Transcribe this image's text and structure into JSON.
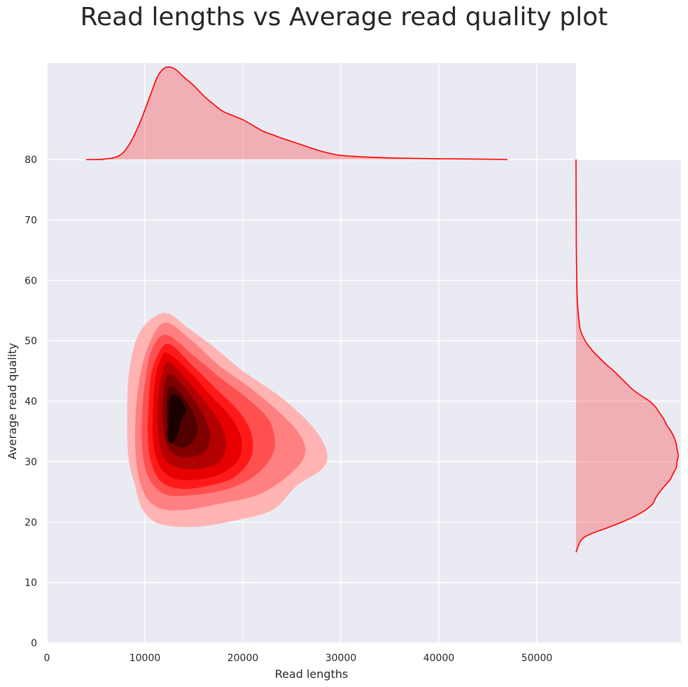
{
  "chart_data": {
    "type": "kde-jointplot",
    "title": "Read lengths vs Average read quality plot",
    "xlabel": "Read lengths",
    "ylabel": "Average read quality",
    "xlim": [
      0,
      54000
    ],
    "ylim": [
      0,
      80
    ],
    "x_ticks": [
      0,
      10000,
      20000,
      30000,
      40000,
      50000
    ],
    "y_ticks": [
      0,
      10,
      20,
      30,
      40,
      50,
      60,
      70,
      80
    ],
    "grid": true,
    "color": "#ff0000",
    "contour_fills": [
      "#ffb3b3",
      "#ff8080",
      "#ff5050",
      "#ff1a1a",
      "#e60000",
      "#b30000",
      "#800000",
      "#500000",
      "#1a0000"
    ],
    "contour_levels": [
      [
        [
          12000,
          54.6
        ],
        [
          14500,
          52
        ],
        [
          17000,
          49
        ],
        [
          20000,
          45
        ],
        [
          24000,
          40.5
        ],
        [
          27000,
          36
        ],
        [
          28500,
          32
        ],
        [
          28200,
          29
        ],
        [
          25500,
          26
        ],
        [
          23000,
          22
        ],
        [
          19000,
          20.2
        ],
        [
          15000,
          19.2
        ],
        [
          11500,
          19.7
        ],
        [
          9800,
          22
        ],
        [
          9000,
          26
        ],
        [
          8300,
          31
        ],
        [
          8200,
          38
        ],
        [
          8400,
          45
        ],
        [
          9500,
          51.5
        ]
      ],
      [
        [
          12000,
          53
        ],
        [
          14800,
          50
        ],
        [
          17500,
          46
        ],
        [
          20500,
          42.5
        ],
        [
          23500,
          38.5
        ],
        [
          25800,
          34.5
        ],
        [
          26300,
          31
        ],
        [
          24500,
          27.5
        ],
        [
          21500,
          24.5
        ],
        [
          17500,
          23
        ],
        [
          14000,
          22
        ],
        [
          11500,
          22.3
        ],
        [
          10000,
          24.5
        ],
        [
          9200,
          29
        ],
        [
          9000,
          35
        ],
        [
          9300,
          42
        ],
        [
          10200,
          48.5
        ]
      ],
      [
        [
          12200,
          51
        ],
        [
          15000,
          47.5
        ],
        [
          18000,
          43.5
        ],
        [
          20800,
          40
        ],
        [
          22800,
          36.5
        ],
        [
          23200,
          32
        ],
        [
          21500,
          28
        ],
        [
          18500,
          25.5
        ],
        [
          15000,
          24.5
        ],
        [
          12200,
          24.5
        ],
        [
          10500,
          27
        ],
        [
          9800,
          31
        ],
        [
          9700,
          37
        ],
        [
          10000,
          43
        ],
        [
          10700,
          48.5
        ]
      ],
      [
        [
          12300,
          49.5
        ],
        [
          14800,
          46
        ],
        [
          17300,
          42
        ],
        [
          19500,
          38.5
        ],
        [
          20800,
          35
        ],
        [
          20900,
          31
        ],
        [
          19200,
          27.5
        ],
        [
          16500,
          26
        ],
        [
          13800,
          25.5
        ],
        [
          11800,
          26.5
        ],
        [
          10700,
          29.5
        ],
        [
          10300,
          34
        ],
        [
          10400,
          40
        ],
        [
          10800,
          45.5
        ]
      ],
      [
        [
          12300,
          48
        ],
        [
          14500,
          45
        ],
        [
          16700,
          41
        ],
        [
          18700,
          37.5
        ],
        [
          19800,
          34
        ],
        [
          19600,
          30.5
        ],
        [
          17800,
          28
        ],
        [
          15200,
          27
        ],
        [
          13000,
          27.2
        ],
        [
          11600,
          29
        ],
        [
          10900,
          32.5
        ],
        [
          10800,
          37.5
        ],
        [
          11000,
          43
        ],
        [
          11500,
          46.5
        ]
      ],
      [
        [
          12400,
          46.5
        ],
        [
          14300,
          43.5
        ],
        [
          16100,
          40
        ],
        [
          17600,
          36.5
        ],
        [
          18300,
          33
        ],
        [
          17600,
          30
        ],
        [
          15600,
          28.8
        ],
        [
          13400,
          29
        ],
        [
          12000,
          30.5
        ],
        [
          11400,
          34
        ],
        [
          11300,
          39
        ],
        [
          11600,
          43.5
        ]
      ],
      [
        [
          12500,
          44.5
        ],
        [
          14200,
          42
        ],
        [
          15700,
          38.5
        ],
        [
          16600,
          35
        ],
        [
          16300,
          32
        ],
        [
          14900,
          30.8
        ],
        [
          13200,
          31
        ],
        [
          12200,
          33
        ],
        [
          11800,
          37
        ],
        [
          11900,
          41.5
        ]
      ],
      [
        [
          12600,
          42.5
        ],
        [
          14000,
          40.5
        ],
        [
          15100,
          37.5
        ],
        [
          15300,
          34.5
        ],
        [
          14300,
          32.5
        ],
        [
          13000,
          32.8
        ],
        [
          12400,
          35
        ],
        [
          12200,
          39
        ]
      ],
      [
        [
          12600,
          40.8
        ],
        [
          13600,
          40.5
        ],
        [
          14200,
          38.5
        ],
        [
          13800,
          37.2
        ],
        [
          13500,
          35.5
        ],
        [
          13200,
          34
        ],
        [
          12700,
          33
        ],
        [
          12300,
          34
        ],
        [
          12400,
          37
        ]
      ]
    ],
    "marginal_x": {
      "x": [
        4000,
        6000,
        7500,
        8500,
        9500,
        10500,
        11300,
        12000,
        12600,
        13200,
        14000,
        15000,
        16000,
        17000,
        18000,
        20000,
        22000,
        23000,
        24000,
        26000,
        28000,
        30000,
        33000,
        36000,
        40000,
        45000,
        47000
      ],
      "density": [
        0,
        0.005,
        0.05,
        0.18,
        0.4,
        0.68,
        0.9,
        0.99,
        1.0,
        0.97,
        0.89,
        0.8,
        0.69,
        0.6,
        0.52,
        0.43,
        0.31,
        0.27,
        0.23,
        0.16,
        0.09,
        0.045,
        0.025,
        0.015,
        0.008,
        0.003,
        0
      ]
    },
    "marginal_y": {
      "y": [
        15,
        17,
        18,
        19,
        20,
        21,
        22,
        23,
        24,
        25,
        26,
        27,
        28,
        29,
        30,
        31,
        32,
        33,
        34,
        35,
        36,
        37,
        38,
        39,
        40,
        41,
        42,
        43,
        44,
        45,
        46,
        47,
        48,
        49,
        50,
        51,
        52,
        54,
        56,
        58,
        60,
        63,
        66,
        70,
        75,
        80
      ],
      "density": [
        0,
        0.05,
        0.14,
        0.3,
        0.45,
        0.58,
        0.68,
        0.75,
        0.78,
        0.82,
        0.87,
        0.92,
        0.95,
        0.98,
        0.99,
        1.0,
        0.99,
        0.98,
        0.96,
        0.93,
        0.89,
        0.86,
        0.82,
        0.78,
        0.72,
        0.63,
        0.55,
        0.49,
        0.43,
        0.37,
        0.3,
        0.24,
        0.18,
        0.13,
        0.09,
        0.06,
        0.04,
        0.025,
        0.015,
        0.01,
        0.008,
        0.005,
        0.003,
        0.002,
        0.001,
        0
      ]
    }
  }
}
